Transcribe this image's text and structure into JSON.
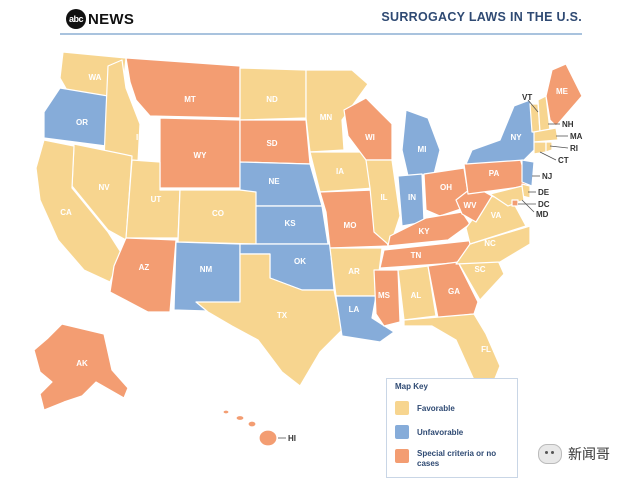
{
  "header": {
    "logo_text": "abc",
    "logo_word": "NEWS",
    "title": "SURROGACY LAWS IN THE U.S."
  },
  "colors": {
    "favorable": "#f7d58f",
    "unfavorable": "#86acd9",
    "special": "#f39d72",
    "border": "#ffffff"
  },
  "legend": {
    "title": "Map Key",
    "items": [
      {
        "key": "favorable",
        "label": "Favorable"
      },
      {
        "key": "unfavorable",
        "label": "Unfavorable"
      },
      {
        "key": "special",
        "label": "Special criteria or no cases"
      }
    ]
  },
  "states": {
    "WA": "favorable",
    "OR": "unfavorable",
    "CA": "favorable",
    "NV": "favorable",
    "ID": "favorable",
    "MT": "special",
    "WY": "special",
    "UT": "favorable",
    "CO": "favorable",
    "AZ": "special",
    "NM": "unfavorable",
    "ND": "favorable",
    "SD": "special",
    "NE": "unfavorable",
    "KS": "unfavorable",
    "OK": "unfavorable",
    "TX": "favorable",
    "MN": "favorable",
    "IA": "favorable",
    "MO": "special",
    "AR": "favorable",
    "LA": "unfavorable",
    "WI": "special",
    "IL": "favorable",
    "MI": "unfavorable",
    "IN": "unfavorable",
    "OH": "special",
    "KY": "special",
    "TN": "special",
    "MS": "special",
    "AL": "favorable",
    "GA": "special",
    "FL": "favorable",
    "SC": "favorable",
    "NC": "favorable",
    "VA": "favorable",
    "WV": "special",
    "PA": "special",
    "NY": "unfavorable",
    "VT": "favorable",
    "NH": "favorable",
    "ME": "special",
    "MA": "favorable",
    "RI": "favorable",
    "CT": "favorable",
    "NJ": "unfavorable",
    "DE": "favorable",
    "MD": "favorable",
    "DC": "special",
    "AK": "special",
    "HI": "special"
  },
  "external_labels": [
    "VT",
    "NH",
    "MA",
    "RI",
    "CT",
    "NJ",
    "DE",
    "DC",
    "MD",
    "HI"
  ],
  "watermark": "新闻哥"
}
